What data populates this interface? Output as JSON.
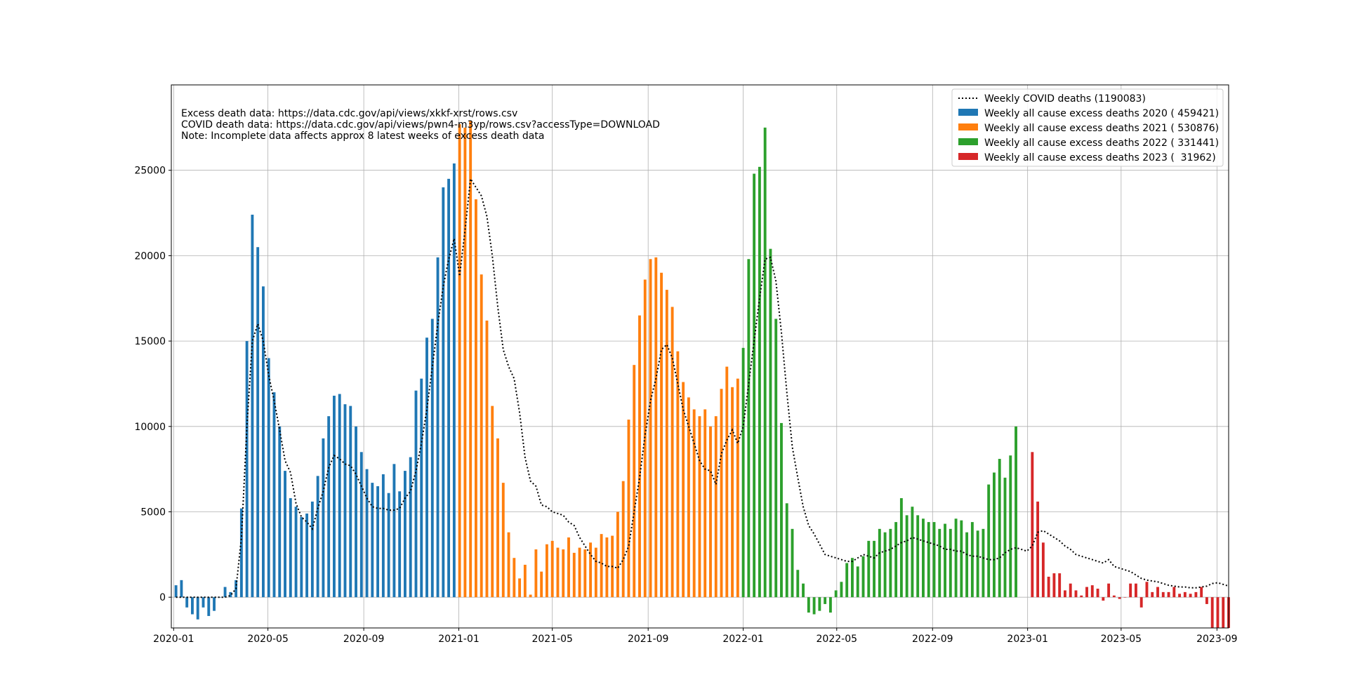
{
  "chart_data": {
    "type": "bar",
    "title": "",
    "xlabel": "",
    "ylabel": "",
    "xlim": [
      "2019-12-29",
      "2023-09-16"
    ],
    "ylim": [
      -1800,
      30000
    ],
    "grid": true,
    "legend_placement": "top-right",
    "x_tick_labels": [
      "2020-01",
      "2020-05",
      "2020-09",
      "2021-01",
      "2021-05",
      "2021-09",
      "2022-01",
      "2022-05",
      "2022-09",
      "2023-01",
      "2023-05",
      "2023-09"
    ],
    "y_tick_labels": [
      "0",
      "5000",
      "10000",
      "15000",
      "20000",
      "25000"
    ],
    "annotations": [
      "Excess death data: https://data.cdc.gov/api/views/xkkf-xrst/rows.csv",
      "COVID death data: https://data.cdc.gov/api/views/pwn4-m3yp/rows.csv?accessType=DOWNLOAD",
      "Note: Incomplete data affects approx 8 latest weeks of excess death data"
    ],
    "legend": [
      "Weekly COVID deaths (1190083)",
      "Weekly all cause excess deaths 2020 ( 459421)",
      "Weekly all cause excess deaths 2021 ( 530876)",
      "Weekly all cause excess deaths 2022 ( 331441)",
      "Weekly all cause excess deaths 2023 (  31962)"
    ],
    "series": [
      {
        "name": "Weekly all cause excess deaths 2020 ( 459421)",
        "color": "#1f77b4",
        "start_week": "2020-01-04",
        "values": [
          700,
          1000,
          -600,
          -1000,
          -1300,
          -600,
          -1100,
          -800,
          0,
          600,
          300,
          1000,
          5200,
          15000,
          22400,
          20500,
          18200,
          14000,
          12000,
          10000,
          7400,
          5800,
          5300,
          4700,
          4900,
          5600,
          7100,
          9300,
          10600,
          11800,
          11900,
          11300,
          11200,
          10000,
          8500,
          7500,
          6700,
          6500,
          7200,
          6100,
          7800,
          6200,
          7400,
          8200,
          12100,
          12800,
          15200,
          16300,
          19900,
          24000,
          24500,
          25400
        ]
      },
      {
        "name": "Weekly all cause excess deaths 2021 ( 530876)",
        "color": "#ff7f0e",
        "start_week": "2021-01-02",
        "values": [
          27700,
          27500,
          27900,
          23300,
          18900,
          16200,
          11200,
          9300,
          6700,
          3800,
          2300,
          1100,
          1900,
          150,
          2800,
          1500,
          3100,
          3300,
          2900,
          2800,
          3500,
          2600,
          2900,
          2800,
          3200,
          2900,
          3700,
          3500,
          3600,
          5000,
          6800,
          10400,
          13600,
          16500,
          18600,
          19800,
          19900,
          19000,
          18000,
          17000,
          14400,
          12600,
          11700,
          11000,
          10600,
          11000,
          10000,
          10600,
          12200,
          13500,
          12300,
          12800
        ]
      },
      {
        "name": "Weekly all cause excess deaths 2022 ( 331441)",
        "color": "#2ca02c",
        "start_week": "2022-01-01",
        "values": [
          14600,
          19800,
          24800,
          25200,
          27500,
          20400,
          16300,
          10200,
          5500,
          4000,
          1600,
          800,
          -900,
          -1000,
          -800,
          -400,
          -900,
          400,
          900,
          2000,
          2300,
          1800,
          2400,
          3300,
          3300,
          4000,
          3800,
          4000,
          4400,
          5800,
          4800,
          5300,
          4800,
          4600,
          4400,
          4400,
          4000,
          4300,
          4000,
          4600,
          4500,
          3800,
          4400,
          3900,
          4000,
          6600,
          7300,
          8100,
          7000,
          8300,
          10000
        ]
      },
      {
        "name": "Weekly all cause excess deaths 2023 (  31962)",
        "color": "#d62728",
        "start_week": "2023-01-07",
        "values": [
          8500,
          5600,
          3200,
          1200,
          1400,
          1400,
          400,
          800,
          400,
          100,
          600,
          700,
          500,
          -200,
          800,
          100,
          -100,
          0,
          800,
          800,
          -600,
          900,
          300,
          600,
          300,
          300,
          600,
          200,
          300,
          200,
          300,
          600,
          -400,
          -2000,
          -1900,
          -1800,
          -1900
        ]
      },
      {
        "name": "Weekly COVID deaths (1190083)",
        "color": "#000000",
        "line_style": "dotted",
        "start_week": "2020-01-04",
        "values": [
          0,
          0,
          0,
          0,
          0,
          0,
          0,
          0,
          0,
          0,
          100,
          500,
          3500,
          10000,
          15000,
          16000,
          15000,
          13000,
          11500,
          9800,
          8000,
          7300,
          5500,
          4700,
          4400,
          4000,
          5200,
          6200,
          7600,
          8300,
          8100,
          7800,
          7700,
          7200,
          6500,
          5800,
          5300,
          5200,
          5200,
          5100,
          5100,
          5200,
          5800,
          6200,
          7400,
          9000,
          11000,
          13500,
          16000,
          18200,
          19800,
          21000,
          18800,
          21500,
          24500,
          24000,
          23500,
          22300,
          20000,
          17000,
          14500,
          13500,
          12800,
          10800,
          8200,
          6800,
          6500,
          5400,
          5300,
          5000,
          4900,
          4800,
          4400,
          4200,
          3500,
          3000,
          2500,
          2100,
          2000,
          1800,
          1800,
          1700,
          2200,
          3000,
          5000,
          7000,
          9500,
          11500,
          12800,
          14500,
          14800,
          14000,
          12500,
          11000,
          10000,
          9000,
          8000,
          7500,
          7400,
          6600,
          8400,
          9200,
          9800,
          9000,
          10000,
          12500,
          15000,
          17500,
          19800,
          19900,
          18500,
          15500,
          12000,
          8800,
          7000,
          5300,
          4200,
          3700,
          3100,
          2500,
          2400,
          2300,
          2200,
          2100,
          2100,
          2300,
          2500,
          2400,
          2300,
          2600,
          2700,
          2800,
          3000,
          3200,
          3300,
          3500,
          3400,
          3300,
          3200,
          3100,
          3000,
          2800,
          2800,
          2700,
          2700,
          2500,
          2400,
          2400,
          2300,
          2200,
          2200,
          2300,
          2600,
          2800,
          2900,
          2800,
          2700,
          3000,
          3800,
          3900,
          3700,
          3500,
          3300,
          3000,
          2800,
          2500,
          2400,
          2300,
          2200,
          2100,
          2000,
          2200,
          1800,
          1700,
          1600,
          1500,
          1300,
          1100,
          1000,
          950,
          900,
          800,
          700,
          650,
          600,
          600,
          550,
          550,
          600,
          650,
          800,
          850,
          750,
          650,
          600,
          650,
          650,
          700,
          750,
          850
        ]
      }
    ]
  }
}
